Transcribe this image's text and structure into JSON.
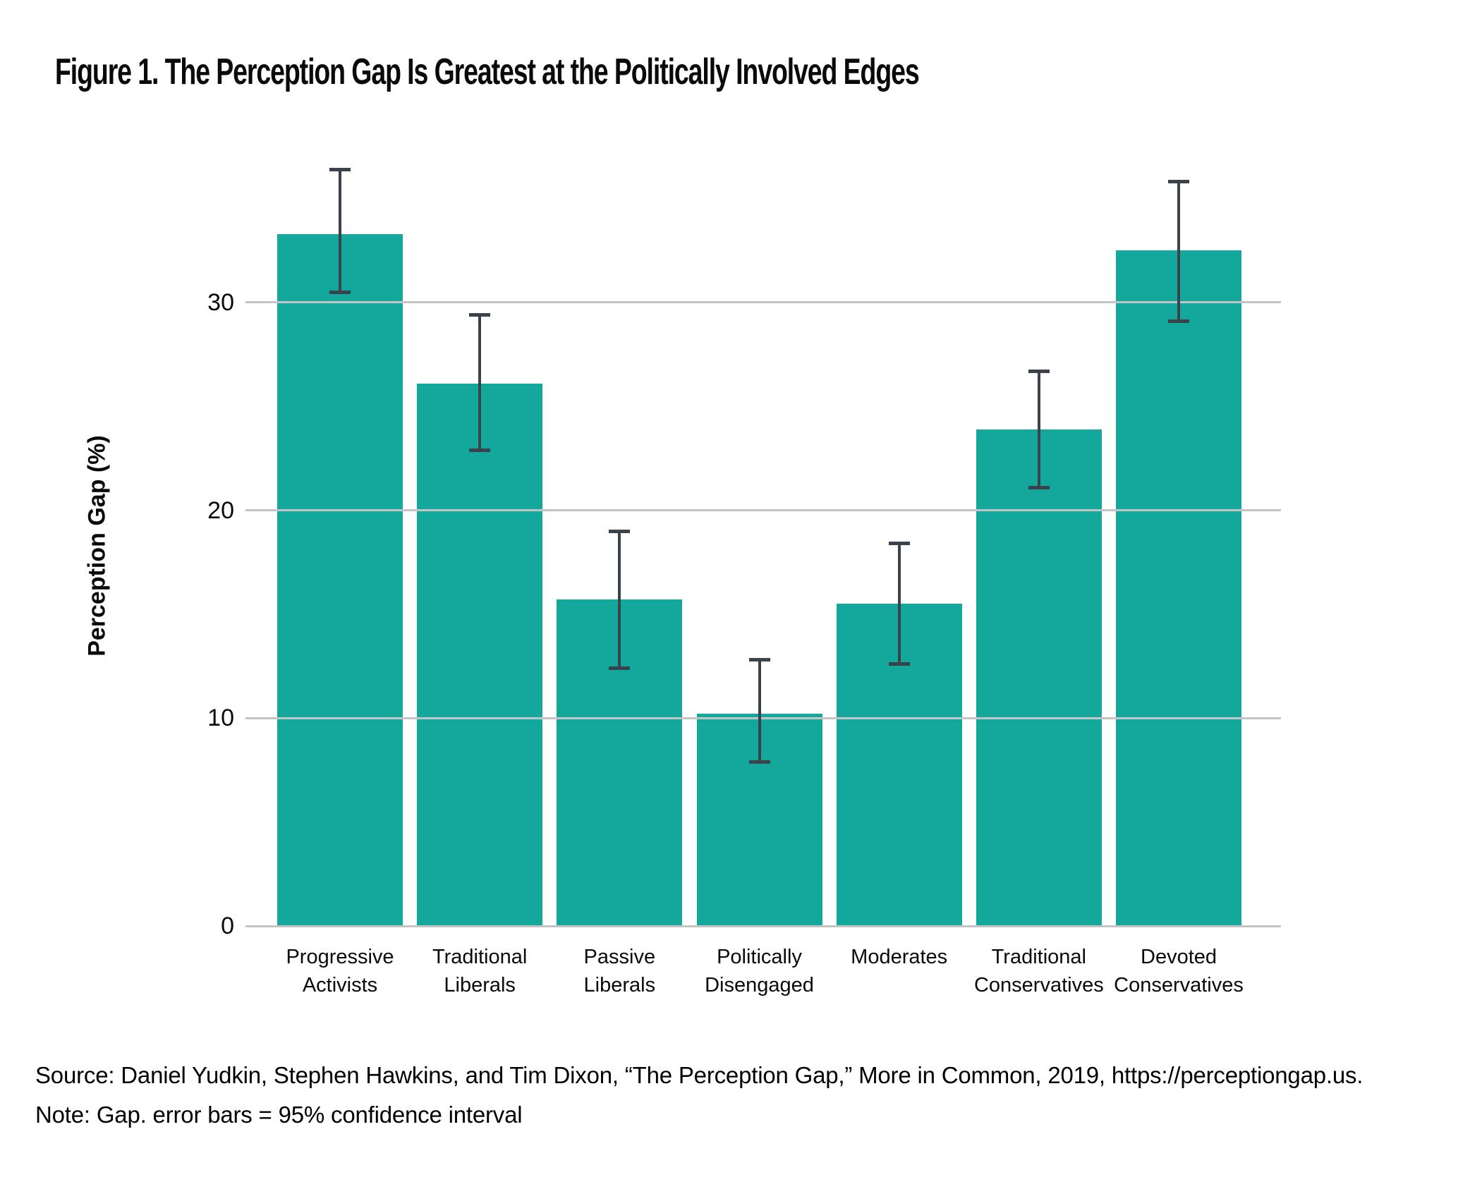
{
  "title": "Figure 1. The Perception Gap Is Greatest at the Politically Involved Edges",
  "source_line": "Source: Daniel Yudkin, Stephen Hawkins, and Tim Dixon, “The Perception Gap,” More in Common, 2019, https://perceptiongap.us.",
  "note_line": "Note: Gap. error bars = 95% confidence interval",
  "chart_data": {
    "type": "bar",
    "title": "Figure 1. The Perception Gap Is Greatest at the Politically Involved Edges",
    "xlabel": "",
    "ylabel": "Perception Gap (%)",
    "categories": [
      "Progressive Activists",
      "Traditional Liberals",
      "Passive Liberals",
      "Politically Disengaged",
      "Moderates",
      "Traditional Conservatives",
      "Devoted Conservatives"
    ],
    "values": [
      33.3,
      26.1,
      15.7,
      10.2,
      15.5,
      23.9,
      32.5
    ],
    "error_low": [
      30.5,
      22.9,
      12.4,
      7.9,
      12.6,
      21.1,
      29.1
    ],
    "error_high": [
      36.4,
      29.4,
      19.0,
      12.8,
      18.4,
      26.7,
      35.8
    ],
    "error_bars": "95% confidence interval",
    "yticks": [
      0,
      10,
      20,
      30
    ],
    "ylim": [
      0,
      39.5
    ],
    "grid": "horizontal",
    "legend": "none",
    "bar_color": "#14A79B",
    "error_bar_color": "#3A424C",
    "gridline_color": "#C4C4C4"
  }
}
